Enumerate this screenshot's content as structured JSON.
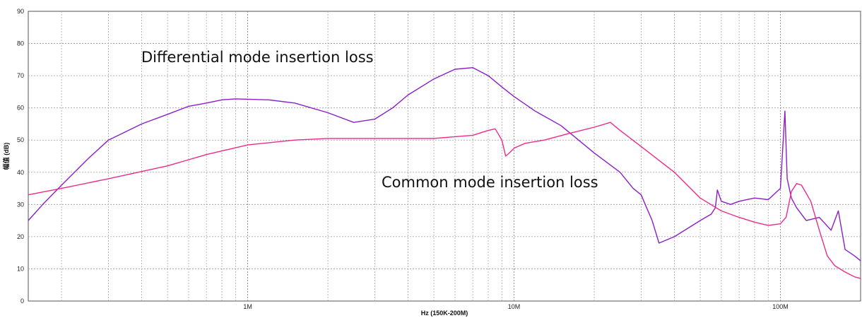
{
  "chart_data": {
    "type": "line",
    "xlabel": "Hz (150K-200M)",
    "ylabel": "幅值 (dB)",
    "x_scale": "log",
    "xlim": [
      150000,
      200000000
    ],
    "ylim": [
      0,
      90
    ],
    "grid": true,
    "y_ticks": [
      "0",
      "10",
      "20",
      "30",
      "40",
      "50",
      "60",
      "70",
      "80",
      "90"
    ],
    "x_tick_labels": [
      {
        "value": 1000000,
        "label": "1M"
      },
      {
        "value": 10000000,
        "label": "10M"
      },
      {
        "value": 100000000,
        "label": "100M"
      }
    ],
    "annotations": [
      {
        "text": "Differential mode insertion loss"
      },
      {
        "text": "Common mode insertion loss"
      }
    ],
    "series": [
      {
        "color": "#8a1fc8",
        "x": [
          150000,
          170000,
          200000,
          250000,
          300000,
          400000,
          500000,
          600000,
          700000,
          800000,
          900000,
          1000000,
          1200000,
          1500000,
          2000000,
          2500000,
          3000000,
          3500000,
          4000000,
          5000000,
          6000000,
          7000000,
          8000000,
          9000000,
          10000000,
          12000000,
          15000000,
          20000000,
          25000000,
          28000000,
          30000000,
          33000000,
          35000000,
          40000000,
          50000000,
          55000000,
          57000000,
          58000000,
          60000000,
          65000000,
          70000000,
          80000000,
          90000000,
          100000000,
          104000000,
          106000000,
          110000000,
          115000000,
          125000000,
          140000000,
          155000000,
          165000000,
          175000000,
          190000000,
          200000000
        ],
        "y": [
          25,
          30,
          36,
          44,
          50,
          55,
          58,
          60.5,
          61.5,
          62.5,
          62.8,
          62.7,
          62.5,
          61.5,
          58.5,
          55.5,
          56.5,
          60,
          64,
          69,
          72,
          72.5,
          70,
          66.5,
          63.5,
          59,
          54.5,
          46,
          40,
          35,
          33,
          25,
          18,
          20,
          25,
          27,
          29,
          34.5,
          31,
          30,
          31,
          32,
          31.5,
          35,
          59,
          38,
          32,
          29,
          25,
          26,
          22,
          28,
          16,
          14,
          12.5
        ]
      },
      {
        "color": "#ec2b8c",
        "x": [
          150000,
          200000,
          300000,
          500000,
          700000,
          1000000,
          1500000,
          2000000,
          3000000,
          5000000,
          7000000,
          8000000,
          8500000,
          9000000,
          9300000,
          9600000,
          10000000,
          11000000,
          13000000,
          16000000,
          20000000,
          23000000,
          25000000,
          30000000,
          40000000,
          50000000,
          60000000,
          70000000,
          80000000,
          90000000,
          100000000,
          105000000,
          110000000,
          115000000,
          120000000,
          130000000,
          140000000,
          150000000,
          160000000,
          175000000,
          190000000,
          200000000
        ],
        "y": [
          33,
          35,
          38,
          42,
          45.5,
          48.5,
          50,
          50.5,
          50.5,
          50.5,
          51.5,
          53,
          53.5,
          50,
          45,
          46,
          47.5,
          49,
          50,
          52,
          54,
          55.5,
          53,
          48,
          40,
          32,
          28,
          26,
          24.5,
          23.5,
          24,
          26,
          34,
          36.5,
          36,
          31,
          22,
          14,
          11,
          9,
          7.5,
          7
        ]
      }
    ]
  }
}
